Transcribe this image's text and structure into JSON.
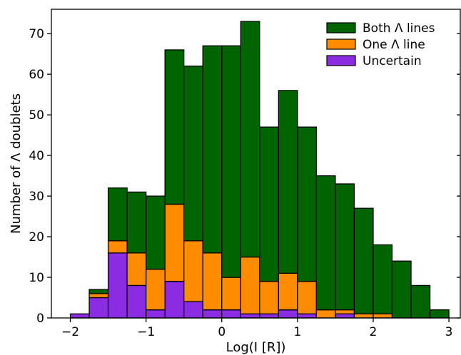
{
  "chart_data": {
    "type": "bar",
    "stacked": true,
    "xlabel": "Log(I [R])",
    "ylabel": "Number of Λ doublets",
    "xlim": [
      -2.25,
      3.15
    ],
    "ylim": [
      0,
      76
    ],
    "xticks": [
      -2,
      -1,
      0,
      1,
      2,
      3
    ],
    "xtick_labels": [
      "−2",
      "−1",
      "0",
      "1",
      "2",
      "3"
    ],
    "yticks": [
      0,
      10,
      20,
      30,
      40,
      50,
      60,
      70
    ],
    "ytick_labels": [
      "0",
      "10",
      "20",
      "30",
      "40",
      "50",
      "60",
      "70"
    ],
    "bin_width": 0.25,
    "bin_starts": [
      -2.0,
      -1.75,
      -1.5,
      -1.25,
      -1.0,
      -0.75,
      -0.5,
      -0.25,
      0.0,
      0.25,
      0.5,
      0.75,
      1.0,
      1.25,
      1.5,
      1.75,
      2.0,
      2.25,
      2.5,
      2.75
    ],
    "totals": [
      1,
      7,
      32,
      31,
      30,
      66,
      62,
      67,
      67,
      73,
      47,
      56,
      47,
      35,
      33,
      27,
      18,
      14,
      8,
      2
    ],
    "series": [
      {
        "name": "Uncertain",
        "color": "#8b2be2",
        "values": [
          1,
          5,
          16,
          8,
          2,
          9,
          4,
          2,
          2,
          1,
          1,
          2,
          1,
          0,
          1,
          0,
          0,
          0,
          0,
          0
        ]
      },
      {
        "name": "One Λ line",
        "color": "#ff8c00",
        "values": [
          0,
          1,
          3,
          8,
          10,
          19,
          15,
          14,
          8,
          14,
          8,
          9,
          8,
          2,
          1,
          1,
          1,
          0,
          0,
          0
        ]
      },
      {
        "name": "Both Λ lines",
        "color": "#006400",
        "values": [
          0,
          1,
          13,
          15,
          18,
          38,
          43,
          51,
          57,
          58,
          38,
          45,
          38,
          33,
          31,
          26,
          17,
          14,
          8,
          2
        ]
      }
    ],
    "legend": {
      "position": "top-right",
      "entries": [
        "Both Λ lines",
        "One Λ line",
        "Uncertain"
      ]
    },
    "grid": false
  }
}
